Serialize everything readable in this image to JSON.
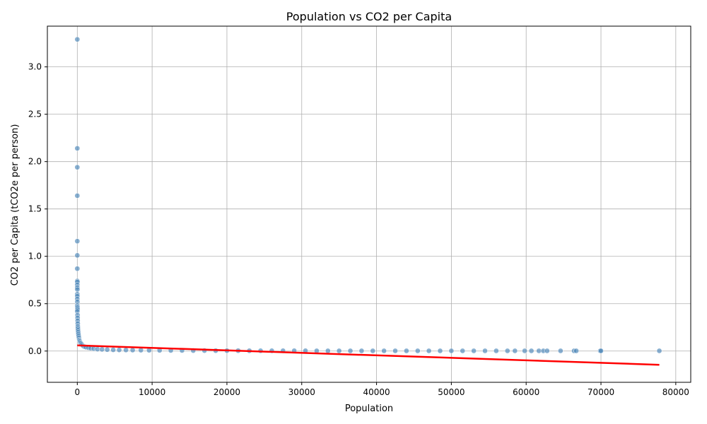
{
  "chart_data": {
    "type": "scatter",
    "title": "Population vs CO2 per Capita",
    "xlabel": "Population",
    "ylabel": "CO2 per Capita (tCO2e per person)",
    "xlim": [
      -4000,
      82000
    ],
    "ylim": [
      -0.33,
      3.43
    ],
    "xticks": [
      0,
      10000,
      20000,
      30000,
      40000,
      50000,
      60000,
      70000,
      80000
    ],
    "yticks": [
      0.0,
      0.5,
      1.0,
      1.5,
      2.0,
      2.5,
      3.0
    ],
    "xtick_labels": [
      "0",
      "10000",
      "20000",
      "30000",
      "40000",
      "50000",
      "60000",
      "70000",
      "80000"
    ],
    "ytick_labels": [
      "0.0",
      "0.5",
      "1.0",
      "1.5",
      "2.0",
      "2.5",
      "3.0"
    ],
    "grid": true,
    "point_color": "#4a86b8",
    "line_color": "#ff0000",
    "series": [
      {
        "points": [
          [
            0,
            3.29
          ],
          [
            0,
            2.14
          ],
          [
            0,
            1.94
          ],
          [
            0,
            1.64
          ],
          [
            0,
            1.16
          ],
          [
            0,
            1.01
          ],
          [
            0,
            0.87
          ],
          [
            0,
            0.74
          ],
          [
            10,
            0.73
          ],
          [
            0,
            0.7
          ],
          [
            0,
            0.67
          ],
          [
            10,
            0.65
          ],
          [
            0,
            0.6
          ],
          [
            5,
            0.58
          ],
          [
            0,
            0.55
          ],
          [
            10,
            0.52
          ],
          [
            0,
            0.48
          ],
          [
            20,
            0.46
          ],
          [
            30,
            0.44
          ],
          [
            0,
            0.42
          ],
          [
            30,
            0.38
          ],
          [
            40,
            0.35
          ],
          [
            50,
            0.32
          ],
          [
            60,
            0.29
          ],
          [
            70,
            0.26
          ],
          [
            80,
            0.24
          ],
          [
            100,
            0.22
          ],
          [
            120,
            0.2
          ],
          [
            150,
            0.18
          ],
          [
            180,
            0.16
          ],
          [
            220,
            0.14
          ],
          [
            260,
            0.12
          ],
          [
            300,
            0.11
          ],
          [
            350,
            0.1
          ],
          [
            420,
            0.09
          ],
          [
            500,
            0.08
          ],
          [
            600,
            0.07
          ],
          [
            700,
            0.06
          ],
          [
            850,
            0.05
          ],
          [
            1000,
            0.045
          ],
          [
            1200,
            0.04
          ],
          [
            1500,
            0.035
          ],
          [
            1800,
            0.03
          ],
          [
            2200,
            0.025
          ],
          [
            2700,
            0.02
          ],
          [
            3300,
            0.018
          ],
          [
            4000,
            0.015
          ],
          [
            4800,
            0.013
          ],
          [
            5600,
            0.012
          ],
          [
            6500,
            0.011
          ],
          [
            7400,
            0.01
          ],
          [
            8500,
            0.009
          ],
          [
            9600,
            0.008
          ],
          [
            11000,
            0.007
          ],
          [
            12500,
            0.006
          ],
          [
            14000,
            0.006
          ],
          [
            15500,
            0.005
          ],
          [
            17000,
            0.005
          ],
          [
            18500,
            0.004
          ],
          [
            20000,
            0.004
          ],
          [
            21500,
            0.004
          ],
          [
            23000,
            0.003
          ],
          [
            24500,
            0.003
          ],
          [
            26000,
            0.003
          ],
          [
            27500,
            0.003
          ],
          [
            29000,
            0.003
          ],
          [
            30500,
            0.003
          ],
          [
            32000,
            0.002
          ],
          [
            33500,
            0.002
          ],
          [
            35000,
            0.002
          ],
          [
            36500,
            0.002
          ],
          [
            38000,
            0.002
          ],
          [
            39500,
            0.002
          ],
          [
            41000,
            0.002
          ],
          [
            42500,
            0.002
          ],
          [
            44000,
            0.002
          ],
          [
            45500,
            0.002
          ],
          [
            47000,
            0.002
          ],
          [
            48500,
            0.002
          ],
          [
            50000,
            0.002
          ],
          [
            51500,
            0.002
          ],
          [
            53000,
            0.002
          ],
          [
            54500,
            0.002
          ],
          [
            56000,
            0.002
          ],
          [
            57500,
            0.002
          ],
          [
            58500,
            0.002
          ],
          [
            59800,
            0.002
          ],
          [
            60700,
            0.002
          ],
          [
            61700,
            0.002
          ],
          [
            62300,
            0.002
          ],
          [
            62800,
            0.002
          ],
          [
            64600,
            0.002
          ],
          [
            66400,
            0.002
          ],
          [
            66700,
            0.002
          ],
          [
            69900,
            0.002
          ],
          [
            70000,
            0.002
          ],
          [
            77800,
            0.002
          ]
        ]
      }
    ],
    "trend_line": {
      "x": [
        0,
        77800
      ],
      "y": [
        0.06,
        -0.145
      ]
    }
  }
}
